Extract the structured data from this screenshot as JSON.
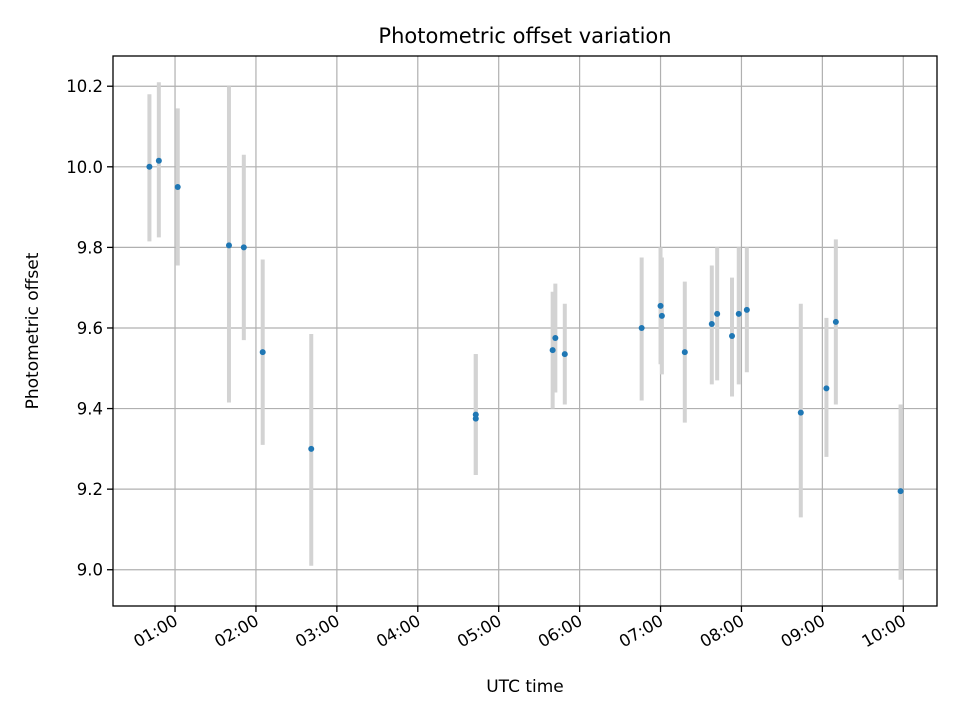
{
  "chart_data": {
    "type": "scatter",
    "title": "Photometric offset variation",
    "xlabel": "UTC time",
    "ylabel": "Photometric offset",
    "xlim": [
      "00:14",
      "10:25"
    ],
    "ylim": [
      8.91,
      10.275
    ],
    "x_tick_labels": [
      "01:00",
      "02:00",
      "03:00",
      "04:00",
      "05:00",
      "06:00",
      "07:00",
      "08:00",
      "09:00",
      "10:00"
    ],
    "y_ticks": [
      9.0,
      9.2,
      9.4,
      9.6,
      9.8,
      10.0,
      10.2
    ],
    "y_tick_labels": [
      "9.0",
      "9.2",
      "9.4",
      "9.6",
      "9.8",
      "10.0",
      "10.2"
    ],
    "grid": true,
    "colors": {
      "point": "#1f77b4",
      "error_bar": "#d3d3d3"
    },
    "points": [
      {
        "x": "00:41",
        "y": 10.0,
        "ylo": 9.815,
        "yhi": 10.18
      },
      {
        "x": "00:48",
        "y": 10.015,
        "ylo": 9.825,
        "yhi": 10.21
      },
      {
        "x": "01:02",
        "y": 9.95,
        "ylo": 9.755,
        "yhi": 10.145
      },
      {
        "x": "01:40",
        "y": 9.805,
        "ylo": 9.415,
        "yhi": 10.2
      },
      {
        "x": "01:51",
        "y": 9.8,
        "ylo": 9.57,
        "yhi": 10.03
      },
      {
        "x": "02:05",
        "y": 9.54,
        "ylo": 9.31,
        "yhi": 9.77
      },
      {
        "x": "02:41",
        "y": 9.3,
        "ylo": 9.01,
        "yhi": 9.585
      },
      {
        "x": "04:43",
        "y": 9.385,
        "ylo": 9.235,
        "yhi": 9.535
      },
      {
        "x": "04:43",
        "y": 9.375,
        "ylo": 9.235,
        "yhi": 9.535
      },
      {
        "x": "05:40",
        "y": 9.545,
        "ylo": 9.4,
        "yhi": 9.69
      },
      {
        "x": "05:42",
        "y": 9.575,
        "ylo": 9.44,
        "yhi": 9.71
      },
      {
        "x": "05:49",
        "y": 9.535,
        "ylo": 9.41,
        "yhi": 9.66
      },
      {
        "x": "06:46",
        "y": 9.6,
        "ylo": 9.42,
        "yhi": 9.775
      },
      {
        "x": "07:00",
        "y": 9.655,
        "ylo": 9.51,
        "yhi": 9.8
      },
      {
        "x": "07:01",
        "y": 9.63,
        "ylo": 9.485,
        "yhi": 9.775
      },
      {
        "x": "07:18",
        "y": 9.54,
        "ylo": 9.365,
        "yhi": 9.715
      },
      {
        "x": "07:38",
        "y": 9.61,
        "ylo": 9.46,
        "yhi": 9.755
      },
      {
        "x": "07:42",
        "y": 9.635,
        "ylo": 9.47,
        "yhi": 9.8
      },
      {
        "x": "07:53",
        "y": 9.58,
        "ylo": 9.43,
        "yhi": 9.725
      },
      {
        "x": "07:58",
        "y": 9.635,
        "ylo": 9.46,
        "yhi": 9.8
      },
      {
        "x": "08:04",
        "y": 9.645,
        "ylo": 9.49,
        "yhi": 9.8
      },
      {
        "x": "08:44",
        "y": 9.39,
        "ylo": 9.13,
        "yhi": 9.66
      },
      {
        "x": "09:03",
        "y": 9.45,
        "ylo": 9.28,
        "yhi": 9.625
      },
      {
        "x": "09:10",
        "y": 9.615,
        "ylo": 9.41,
        "yhi": 9.82
      },
      {
        "x": "09:58",
        "y": 9.195,
        "ylo": 8.975,
        "yhi": 9.41
      }
    ]
  }
}
